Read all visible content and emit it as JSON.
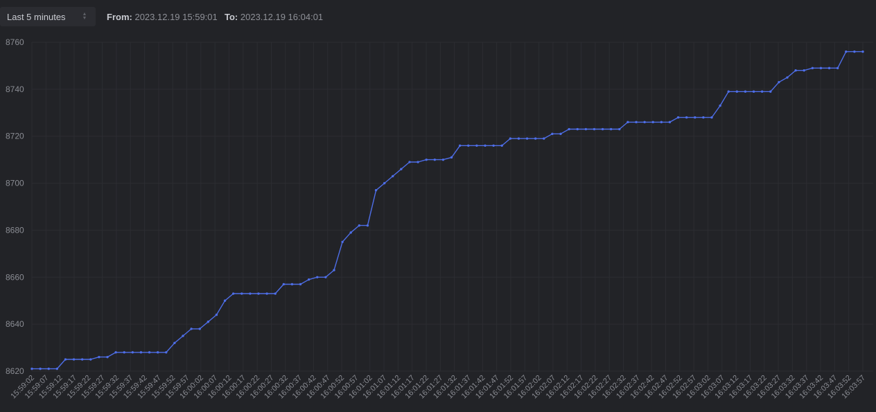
{
  "controls": {
    "range_select": "Last 5 minutes",
    "from_label": "From:",
    "from_value": "2023.12.19 15:59:01",
    "to_label": "To:",
    "to_value": "2023.12.19 16:04:01"
  },
  "colors": {
    "background": "#222327",
    "grid": "#2c2d32",
    "line": "#4e6ee8"
  },
  "chart_data": {
    "type": "line",
    "ylim": [
      8620,
      8760
    ],
    "yticks": [
      8620,
      8640,
      8660,
      8680,
      8700,
      8720,
      8740,
      8760
    ],
    "xticks": [
      "15:59:02",
      "15:59:07",
      "15:59:12",
      "15:59:17",
      "15:59:22",
      "15:59:27",
      "15:59:32",
      "15:59:37",
      "15:59:42",
      "15:59:47",
      "15:59:52",
      "15:59:57",
      "16:00:02",
      "16:00:07",
      "16:00:12",
      "16:00:17",
      "16:00:22",
      "16:00:27",
      "16:00:32",
      "16:00:37",
      "16:00:42",
      "16:00:47",
      "16:00:52",
      "16:00:57",
      "16:01:02",
      "16:01:07",
      "16:01:12",
      "16:01:17",
      "16:01:22",
      "16:01:27",
      "16:01:32",
      "16:01:37",
      "16:01:42",
      "16:01:47",
      "16:01:52",
      "16:01:57",
      "16:02:02",
      "16:02:07",
      "16:02:12",
      "16:02:17",
      "16:02:22",
      "16:02:27",
      "16:02:32",
      "16:02:37",
      "16:02:42",
      "16:02:47",
      "16:02:52",
      "16:02:57",
      "16:03:02",
      "16:03:07",
      "16:03:12",
      "16:03:17",
      "16:03:22",
      "16:03:27",
      "16:03:32",
      "16:03:37",
      "16:03:42",
      "16:03:47",
      "16:03:52",
      "16:03:57"
    ],
    "series": [
      {
        "values": [
          8621,
          8621,
          8621,
          8621,
          8625,
          8625,
          8625,
          8625,
          8626,
          8626,
          8628,
          8628,
          8628,
          8628,
          8628,
          8628,
          8628,
          8632,
          8635,
          8638,
          8638,
          8641,
          8644,
          8650,
          8653,
          8653,
          8653,
          8653,
          8653,
          8653,
          8657,
          8657,
          8657,
          8659,
          8660,
          8660,
          8663,
          8675,
          8679,
          8682,
          8682,
          8697,
          8700,
          8703,
          8706,
          8709,
          8709,
          8710,
          8710,
          8710,
          8711,
          8716,
          8716,
          8716,
          8716,
          8716,
          8716,
          8719,
          8719,
          8719,
          8719,
          8719,
          8721,
          8721,
          8723,
          8723,
          8723,
          8723,
          8723,
          8723,
          8723,
          8726,
          8726,
          8726,
          8726,
          8726,
          8726,
          8728,
          8728,
          8728,
          8728,
          8728,
          8733,
          8739,
          8739,
          8739,
          8739,
          8739,
          8739,
          8743,
          8745,
          8748,
          8748,
          8749,
          8749,
          8749,
          8749,
          8756,
          8756,
          8756
        ]
      }
    ]
  }
}
